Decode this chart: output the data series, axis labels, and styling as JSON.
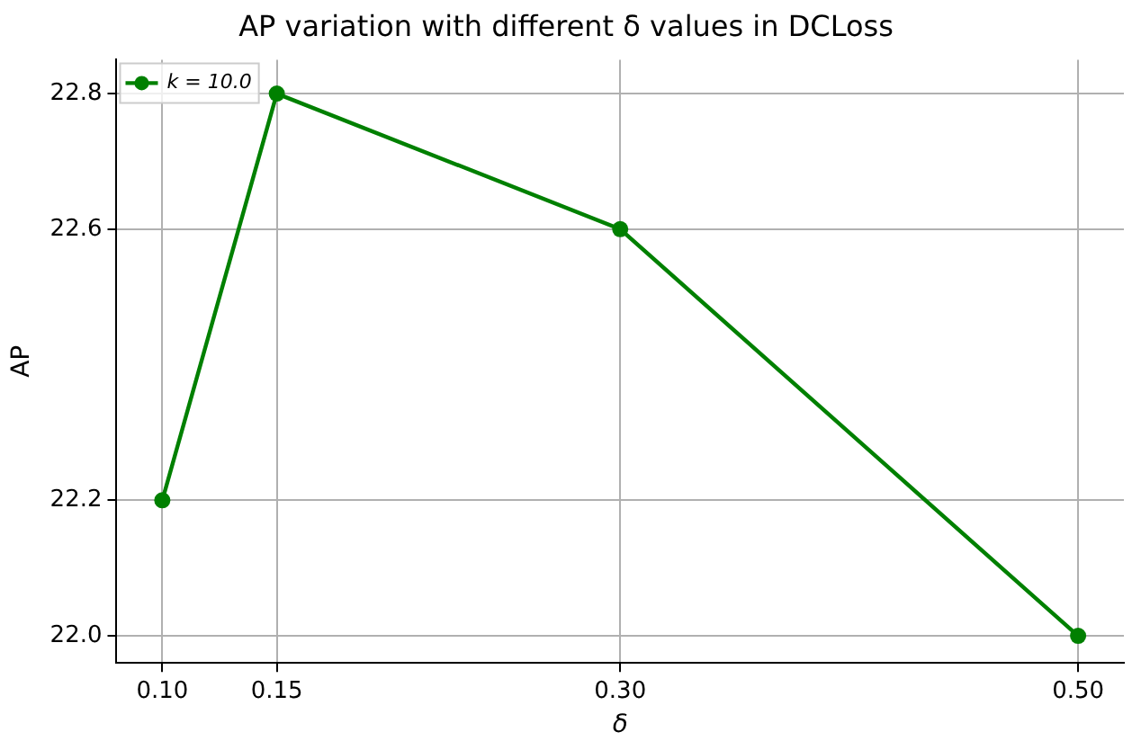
{
  "chart_data": {
    "type": "line",
    "title": "AP variation with different δ values in DCLoss",
    "xlabel": "δ",
    "ylabel": "AP",
    "x": [
      0.1,
      0.15,
      0.3,
      0.5
    ],
    "series": [
      {
        "name": "k = 10.0",
        "color": "#008000",
        "values": [
          22.2,
          22.8,
          22.6,
          22.0
        ]
      }
    ],
    "xlim": [
      0.08,
      0.52
    ],
    "ylim": [
      21.96,
      22.85
    ],
    "xticks": [
      {
        "value": 0.1,
        "label": "0.10"
      },
      {
        "value": 0.15,
        "label": "0.15"
      },
      {
        "value": 0.3,
        "label": "0.30"
      },
      {
        "value": 0.5,
        "label": "0.50"
      }
    ],
    "yticks": [
      {
        "value": 22.0,
        "label": "22.0"
      },
      {
        "value": 22.2,
        "label": "22.2"
      },
      {
        "value": 22.6,
        "label": "22.6"
      },
      {
        "value": 22.8,
        "label": "22.8"
      }
    ],
    "grid": true,
    "legend": "top left",
    "marker": "circle",
    "line_style": "solid"
  }
}
